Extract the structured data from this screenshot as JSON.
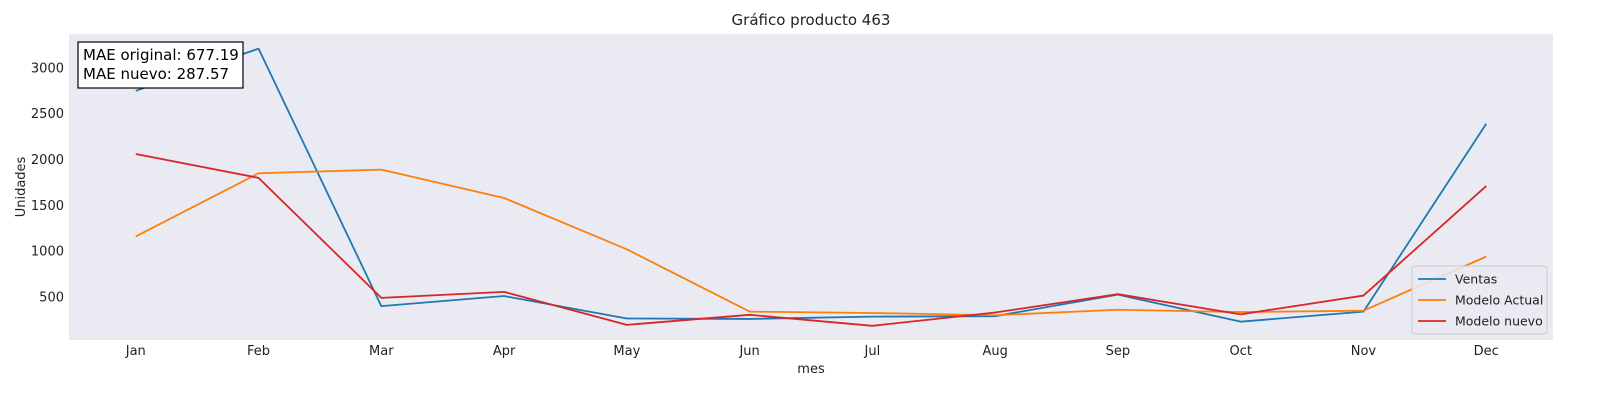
{
  "chart_data": {
    "type": "line",
    "title": "Gráfico producto 463",
    "xlabel": "mes",
    "ylabel": "Unidades",
    "categories": [
      "Jan",
      "Feb",
      "Mar",
      "Apr",
      "May",
      "Jun",
      "Jul",
      "Aug",
      "Sep",
      "Oct",
      "Nov",
      "Dec"
    ],
    "yticks": [
      500,
      1000,
      1500,
      2000,
      2500,
      3000
    ],
    "ylim": [
      30,
      3370
    ],
    "grid": false,
    "legend_position": "bottom-right",
    "series": [
      {
        "name": "Ventas",
        "color": "#1f77b4",
        "values": [
          2750,
          3210,
          400,
          510,
          265,
          260,
          285,
          290,
          525,
          230,
          340,
          2390
        ]
      },
      {
        "name": "Modelo Actual",
        "color": "#ff7f0e",
        "values": [
          1160,
          1850,
          1890,
          1580,
          1020,
          340,
          325,
          300,
          360,
          335,
          350,
          940
        ]
      },
      {
        "name": "Modelo nuevo",
        "color": "#d62728",
        "values": [
          2060,
          1800,
          490,
          555,
          195,
          305,
          185,
          330,
          530,
          310,
          515,
          1710
        ]
      }
    ],
    "annotation": {
      "lines": [
        "MAE original: 677.19",
        "MAE nuevo: 287.57"
      ]
    }
  }
}
